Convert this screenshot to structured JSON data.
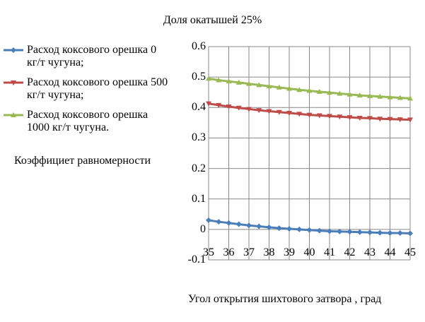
{
  "chart_data": {
    "type": "line",
    "title": "Доля окатышей  25%",
    "xlabel": "Угол открытия шихтового затвора , град",
    "ylabel": "Коэффициет равномерности",
    "xlim": [
      35,
      45
    ],
    "ylim": [
      -0.1,
      0.6
    ],
    "xticks": [
      "35",
      "36",
      "37",
      "38",
      "39",
      "40",
      "41",
      "42",
      "43",
      "44",
      "45"
    ],
    "yticks": [
      "0.6",
      "0.5",
      "0.4",
      "0.3",
      "0.2",
      "0.1",
      "0",
      "-0.1"
    ],
    "grid": true,
    "legend_placement": "overlapping-left",
    "x": [
      35,
      35.5,
      36,
      36.5,
      37,
      37.5,
      38,
      38.5,
      39,
      39.5,
      40,
      40.5,
      41,
      41.5,
      42,
      42.5,
      43,
      43.5,
      44,
      44.5,
      45
    ],
    "series": [
      {
        "name": "Расход коксового орешка 0 кг/т чугуна;",
        "color": "#4a7ebb",
        "marker": "diamond",
        "values": [
          0.03,
          0.025,
          0.021,
          0.017,
          0.013,
          0.01,
          0.007,
          0.004,
          0.002,
          0,
          -0.002,
          -0.004,
          -0.006,
          -0.007,
          -0.008,
          -0.009,
          -0.01,
          -0.011,
          -0.012,
          -0.012,
          -0.013
        ]
      },
      {
        "name": "Расход коксового орешка 500 кг/т чугуна;",
        "color": "#be4b48",
        "marker": "triangle-down",
        "values": [
          0.413,
          0.408,
          0.403,
          0.399,
          0.395,
          0.391,
          0.388,
          0.385,
          0.382,
          0.379,
          0.376,
          0.374,
          0.372,
          0.37,
          0.368,
          0.366,
          0.365,
          0.363,
          0.362,
          0.361,
          0.36
        ]
      },
      {
        "name": "Расход коксового орешка 1000 кг/т чугуна.",
        "color": "#98b954",
        "marker": "triangle-up",
        "values": [
          0.495,
          0.49,
          0.486,
          0.482,
          0.478,
          0.474,
          0.47,
          0.466,
          0.462,
          0.458,
          0.455,
          0.452,
          0.449,
          0.446,
          0.443,
          0.44,
          0.438,
          0.436,
          0.434,
          0.432,
          0.43
        ]
      }
    ]
  }
}
